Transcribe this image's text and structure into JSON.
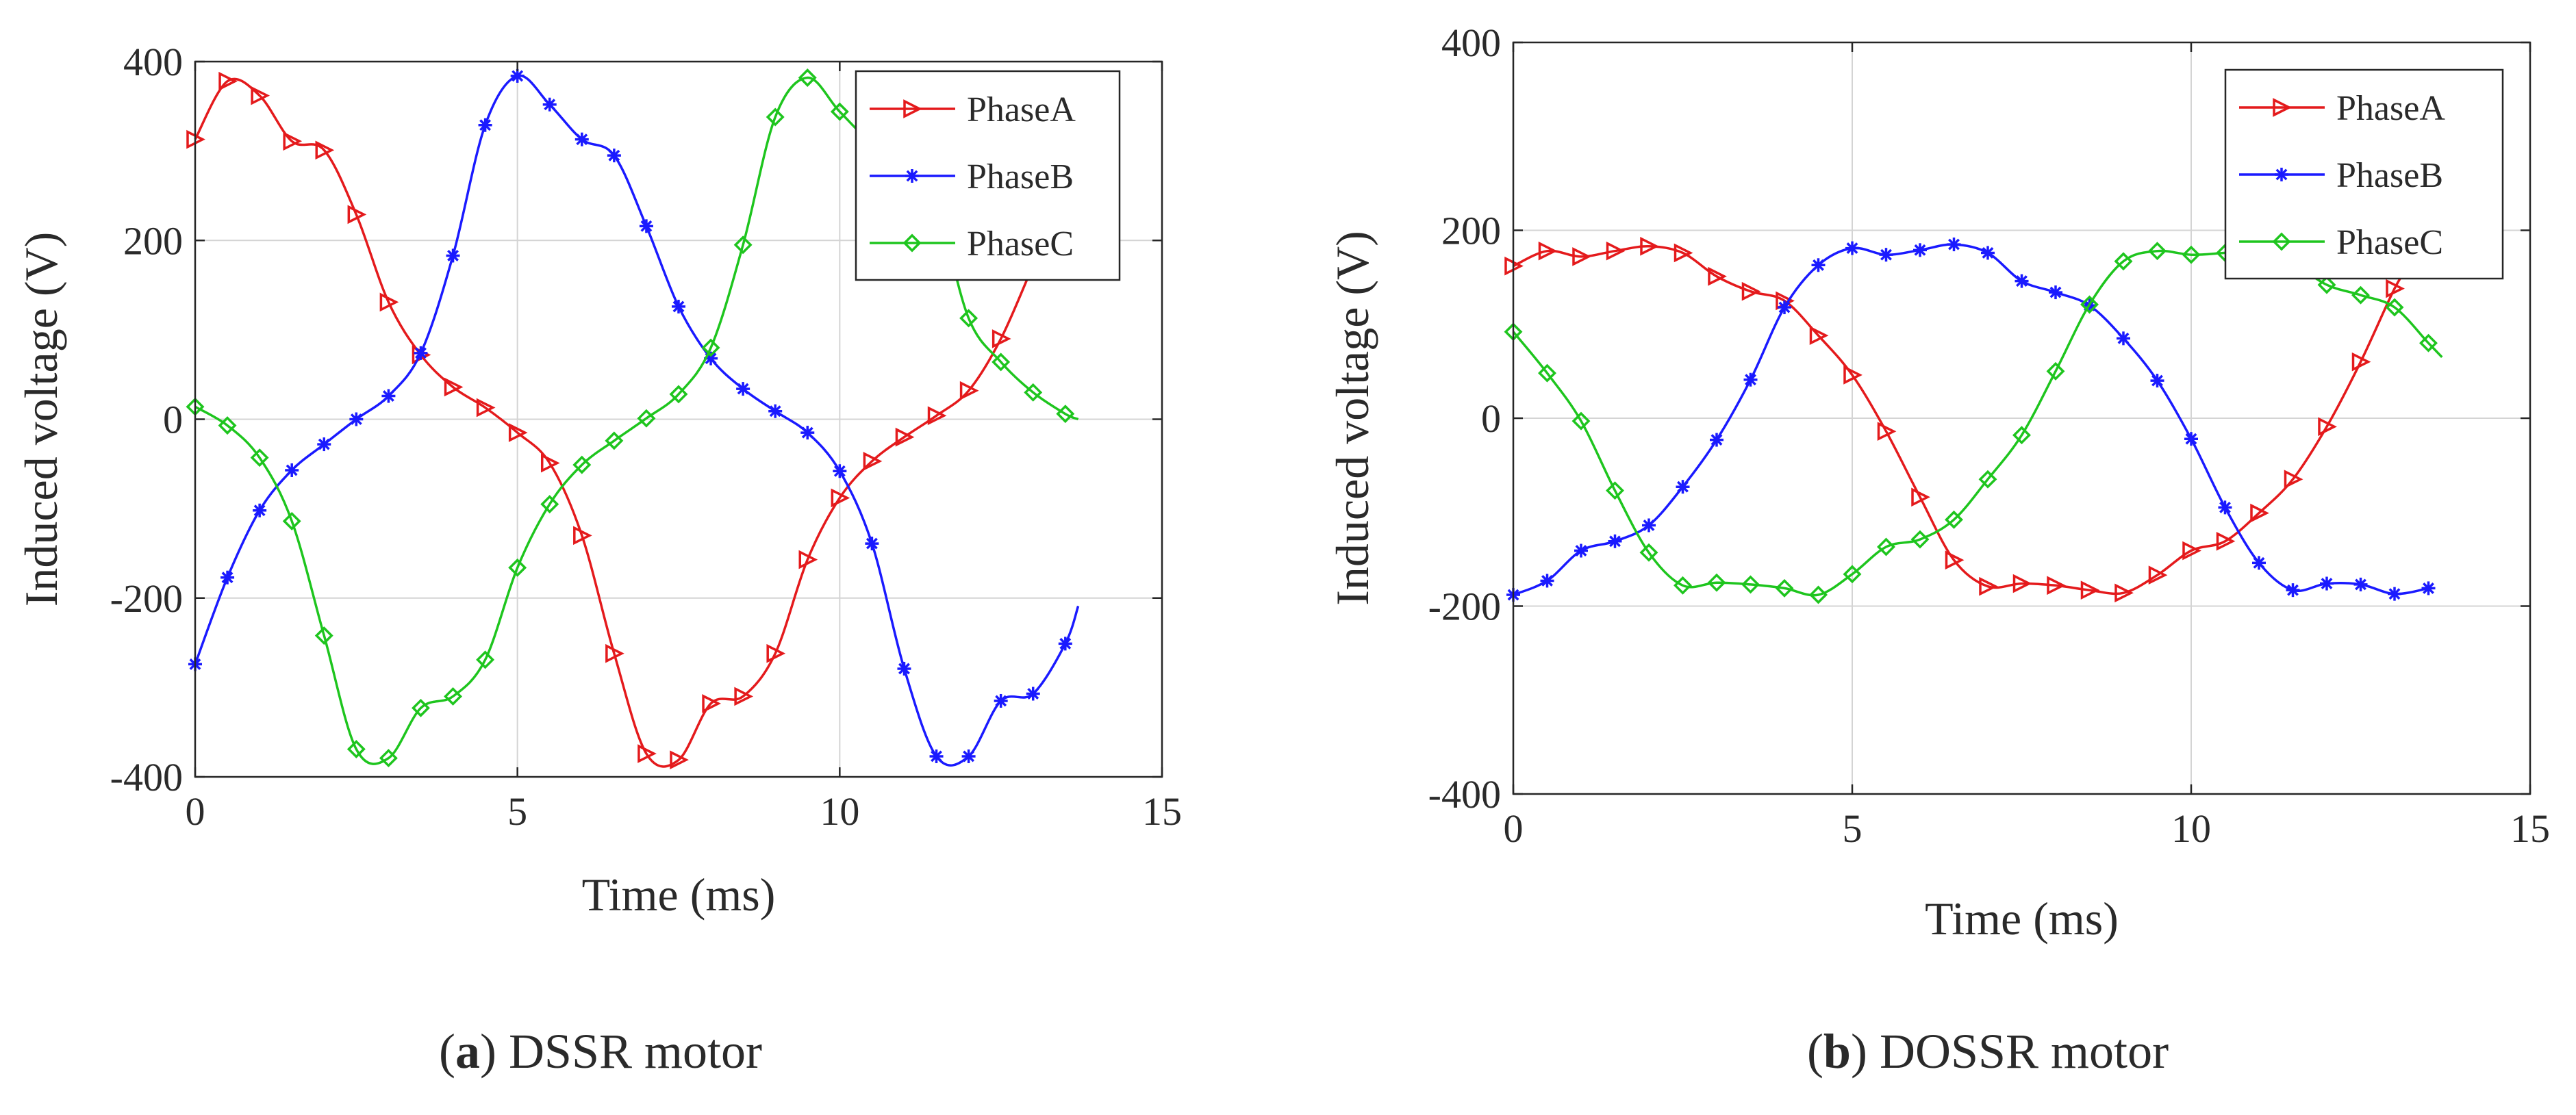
{
  "chart_data": [
    {
      "type": "line",
      "caption": {
        "letter": "a",
        "text": "DSSR motor"
      },
      "xlabel": "Time (ms)",
      "ylabel": "Induced voltage (V)",
      "xlim": [
        0,
        15
      ],
      "ylim": [
        -400,
        400
      ],
      "xticks": [
        0,
        5,
        10,
        15
      ],
      "yticks": [
        -400,
        -200,
        0,
        200,
        400
      ],
      "grid": true,
      "legend_position": "top-right",
      "series": [
        {
          "name": "PhaseA",
          "color": "#e41a1c",
          "marker": "triangle-right",
          "x": [
            0,
            0.5,
            1,
            1.5,
            2,
            2.5,
            3,
            3.5,
            4,
            4.5,
            5,
            5.5,
            6,
            6.5,
            7,
            7.5,
            8,
            8.5,
            9,
            9.5,
            10,
            10.5,
            11,
            11.5,
            12,
            12.5,
            13,
            13.3
          ],
          "y": [
            313,
            378,
            362,
            311,
            301,
            229,
            131,
            72,
            36,
            13,
            -15,
            -49,
            -130,
            -262,
            -374,
            -381,
            -318,
            -310,
            -262,
            -157,
            -88,
            -47,
            -20,
            4,
            32,
            90,
            172,
            220
          ]
        },
        {
          "name": "PhaseB",
          "color": "#1a1aff",
          "marker": "asterisk",
          "x": [
            0,
            0.5,
            1,
            1.5,
            2,
            2.5,
            3,
            3.5,
            4,
            4.5,
            5,
            5.5,
            6,
            6.5,
            7,
            7.5,
            8,
            8.5,
            9,
            9.5,
            10,
            10.5,
            11,
            11.5,
            12,
            12.5,
            13,
            13.5,
            13.7
          ],
          "y": [
            -274,
            -177,
            -102,
            -57,
            -28,
            0,
            26,
            74,
            183,
            329,
            384,
            352,
            313,
            295,
            216,
            126,
            68,
            34,
            9,
            -15,
            -58,
            -139,
            -279,
            -377,
            -377,
            -315,
            -307,
            -251,
            -209
          ]
        },
        {
          "name": "PhaseC",
          "color": "#1ec51e",
          "marker": "diamond",
          "x": [
            0,
            0.5,
            1,
            1.5,
            2,
            2.5,
            3,
            3.5,
            4,
            4.5,
            5,
            5.5,
            6,
            6.5,
            7,
            7.5,
            8,
            8.5,
            9,
            9.5,
            10,
            10.5,
            11,
            11.5,
            12,
            12.5,
            13,
            13.5,
            13.7
          ],
          "y": [
            14,
            -7,
            -43,
            -114,
            -242,
            -369,
            -379,
            -323,
            -310,
            -269,
            -166,
            -95,
            -51,
            -24,
            1,
            28,
            80,
            195,
            338,
            382,
            344,
            310,
            300,
            240,
            113,
            64,
            30,
            6,
            0
          ]
        }
      ]
    },
    {
      "type": "line",
      "caption": {
        "letter": "b",
        "text": "DOSSR motor"
      },
      "xlabel": "Time (ms)",
      "ylabel": "Induced voltage (V)",
      "xlim": [
        0,
        15
      ],
      "ylim": [
        -400,
        400
      ],
      "xticks": [
        0,
        5,
        10,
        15
      ],
      "yticks": [
        -400,
        -200,
        0,
        200,
        400
      ],
      "grid": true,
      "legend_position": "top-right",
      "series": [
        {
          "name": "PhaseA",
          "color": "#e41a1c",
          "marker": "triangle-right",
          "x": [
            0,
            0.5,
            1,
            1.5,
            2,
            2.5,
            3,
            3.5,
            4,
            4.5,
            5,
            5.5,
            6,
            6.5,
            7,
            7.5,
            8,
            8.5,
            9,
            9.5,
            10,
            10.5,
            11,
            11.5,
            12,
            12.5,
            13,
            13.2
          ],
          "y": [
            162,
            178,
            172,
            178,
            183,
            176,
            151,
            135,
            125,
            88,
            46,
            -14,
            -84,
            -151,
            -179,
            -176,
            -178,
            -183,
            -186,
            -167,
            -141,
            -131,
            -101,
            -65,
            -9,
            60,
            138,
            160
          ]
        },
        {
          "name": "PhaseB",
          "color": "#1a1aff",
          "marker": "asterisk",
          "x": [
            0,
            0.5,
            1,
            1.5,
            2,
            2.5,
            3,
            3.5,
            4,
            4.5,
            5,
            5.5,
            6,
            6.5,
            7,
            7.5,
            8,
            8.5,
            9,
            9.5,
            10,
            10.5,
            11,
            11.5,
            12,
            12.5,
            13,
            13.5
          ],
          "y": [
            -188,
            -173,
            -141,
            -131,
            -114,
            -73,
            -23,
            41,
            118,
            163,
            181,
            174,
            179,
            185,
            176,
            146,
            134,
            120,
            85,
            40,
            -22,
            -95,
            -154,
            -183,
            -176,
            -177,
            -187,
            -181
          ]
        },
        {
          "name": "PhaseC",
          "color": "#1ec51e",
          "marker": "diamond",
          "x": [
            0,
            0.5,
            1,
            1.5,
            2,
            2.5,
            3,
            3.5,
            4,
            4.5,
            5,
            5.5,
            6,
            6.5,
            7,
            7.5,
            8,
            8.5,
            9,
            9.5,
            10,
            10.5,
            11,
            11.5,
            12,
            12.5,
            13,
            13.5,
            13.7
          ],
          "y": [
            92,
            48,
            -3,
            -77,
            -143,
            -178,
            -175,
            -177,
            -181,
            -188,
            -166,
            -137,
            -129,
            -108,
            -65,
            -18,
            50,
            121,
            167,
            178,
            174,
            176,
            178,
            165,
            142,
            131,
            118,
            80,
            65
          ]
        }
      ]
    }
  ]
}
